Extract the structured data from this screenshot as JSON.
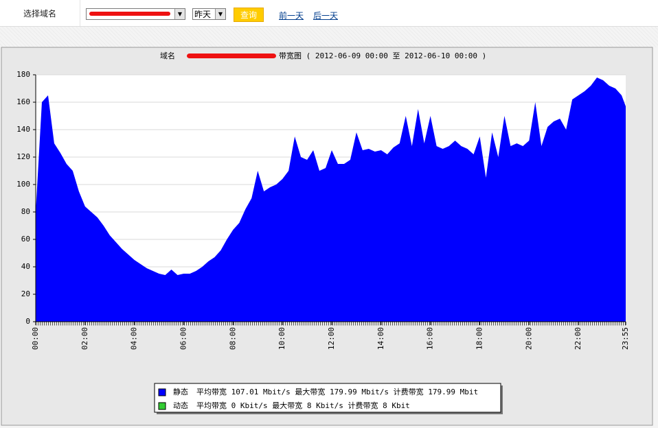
{
  "toolbar": {
    "label": "选择域名",
    "period": "昨天",
    "query": "查询",
    "prev": "前一天",
    "next": "后一天"
  },
  "chart_data": {
    "type": "area",
    "title": "域名",
    "subtitle": "带宽图 ( 2012-06-09 00:00 至 2012-06-10 00:00 )",
    "x": [
      "00:00",
      "00:15",
      "00:30",
      "00:45",
      "01:00",
      "01:15",
      "01:30",
      "01:45",
      "02:00",
      "02:15",
      "02:30",
      "02:45",
      "03:00",
      "03:15",
      "03:30",
      "03:45",
      "04:00",
      "04:15",
      "04:30",
      "04:45",
      "05:00",
      "05:15",
      "05:30",
      "05:45",
      "06:00",
      "06:15",
      "06:30",
      "06:45",
      "07:00",
      "07:15",
      "07:30",
      "07:45",
      "08:00",
      "08:15",
      "08:30",
      "08:45",
      "09:00",
      "09:15",
      "09:30",
      "09:45",
      "10:00",
      "10:15",
      "10:30",
      "10:45",
      "11:00",
      "11:15",
      "11:30",
      "11:45",
      "12:00",
      "12:15",
      "12:30",
      "12:45",
      "13:00",
      "13:15",
      "13:30",
      "13:45",
      "14:00",
      "14:15",
      "14:30",
      "14:45",
      "15:00",
      "15:15",
      "15:30",
      "15:45",
      "16:00",
      "16:15",
      "16:30",
      "16:45",
      "17:00",
      "17:15",
      "17:30",
      "17:45",
      "18:00",
      "18:15",
      "18:30",
      "18:45",
      "19:00",
      "19:15",
      "19:30",
      "19:45",
      "20:00",
      "20:15",
      "20:30",
      "20:45",
      "21:00",
      "21:15",
      "21:30",
      "21:45",
      "22:00",
      "22:15",
      "22:30",
      "22:45",
      "23:00",
      "23:15",
      "23:30",
      "23:45",
      "23:55"
    ],
    "series": [
      {
        "name": "静态",
        "color": "#0000ff",
        "values": [
          80,
          160,
          165,
          130,
          123,
          115,
          110,
          95,
          84,
          80,
          76,
          70,
          63,
          58,
          53,
          49,
          45,
          42,
          39,
          37,
          35,
          34,
          38,
          34,
          35,
          35,
          37,
          40,
          44,
          47,
          52,
          60,
          67,
          72,
          82,
          90,
          110,
          95,
          98,
          100,
          104,
          110,
          135,
          120,
          118,
          125,
          110,
          112,
          125,
          115,
          115,
          118,
          138,
          125,
          126,
          124,
          125,
          122,
          127,
          130,
          150,
          128,
          155,
          130,
          150,
          128,
          126,
          128,
          132,
          128,
          126,
          122,
          135,
          105,
          138,
          120,
          150,
          128,
          130,
          128,
          132,
          160,
          128,
          142,
          146,
          148,
          140,
          162,
          165,
          168,
          172,
          178,
          176,
          172,
          170,
          165,
          157
        ]
      }
    ],
    "legend": [
      {
        "name": "静态",
        "color": "#0000ff",
        "stats": "平均带宽 107.01 Mbit/s 最大带宽 179.99 Mbit/s 计费带宽 179.99 Mbit"
      },
      {
        "name": "动态",
        "color": "#33cc33",
        "stats": "平均带宽 0 Kbit/s 最大带宽 8 Kbit/s 计费带宽 8 Kbit"
      }
    ],
    "xlim": [
      "00:00",
      "23:55"
    ],
    "xticks": [
      "00:00",
      "02:00",
      "04:00",
      "06:00",
      "08:00",
      "10:00",
      "12:00",
      "14:00",
      "16:00",
      "18:00",
      "20:00",
      "22:00",
      "23:55"
    ],
    "ylim": [
      0,
      180
    ],
    "yticks": [
      0,
      20,
      40,
      60,
      80,
      100,
      120,
      140,
      160,
      180
    ],
    "grid": true
  }
}
